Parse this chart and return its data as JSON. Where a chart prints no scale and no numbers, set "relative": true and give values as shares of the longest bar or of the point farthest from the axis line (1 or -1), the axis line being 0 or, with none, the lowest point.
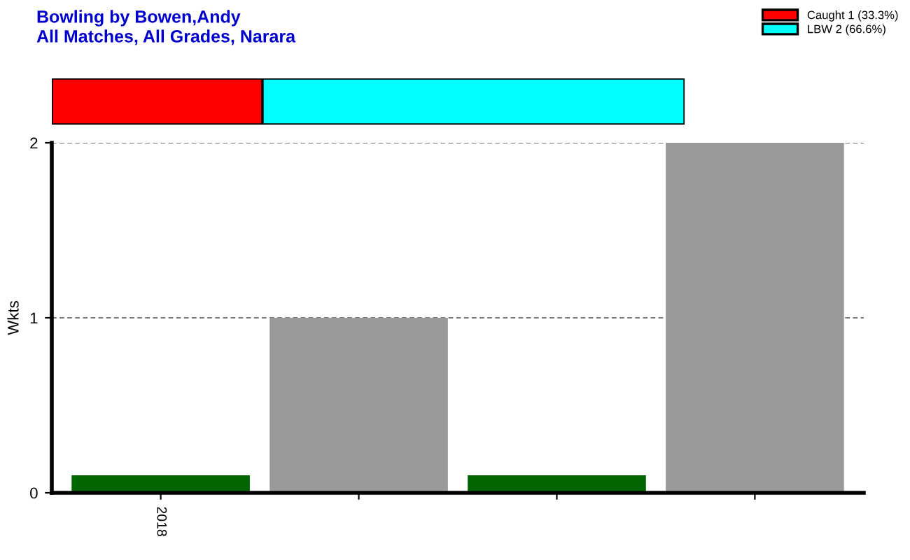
{
  "chart_data": [
    {
      "type": "bar",
      "title": "Bowling by Bowen,Andy",
      "subtitle": "All Matches, All Grades, Narara",
      "orientation": "horizontal",
      "stacked": true,
      "relative": true,
      "categories": [
        null
      ],
      "legend": "top right",
      "series": [
        {
          "name": "Caught 1 (33.3%)",
          "color": "#ff0000",
          "values": [
            0.333
          ]
        },
        {
          "name": "LBW 2 (66.6%)",
          "color": "#00ffff",
          "values": [
            0.667
          ]
        }
      ]
    },
    {
      "type": "bar",
      "ylabel": "Wkts",
      "categories": [
        "2018",
        null,
        null,
        null
      ],
      "values": [
        0.1,
        1,
        0.1,
        2
      ],
      "colors": [
        "#006400",
        "#9a9a9a",
        "#006400",
        "#9a9a9a"
      ],
      "ylim": [
        0,
        2
      ],
      "yticks": [
        0,
        1,
        2
      ],
      "grid": "y"
    }
  ]
}
